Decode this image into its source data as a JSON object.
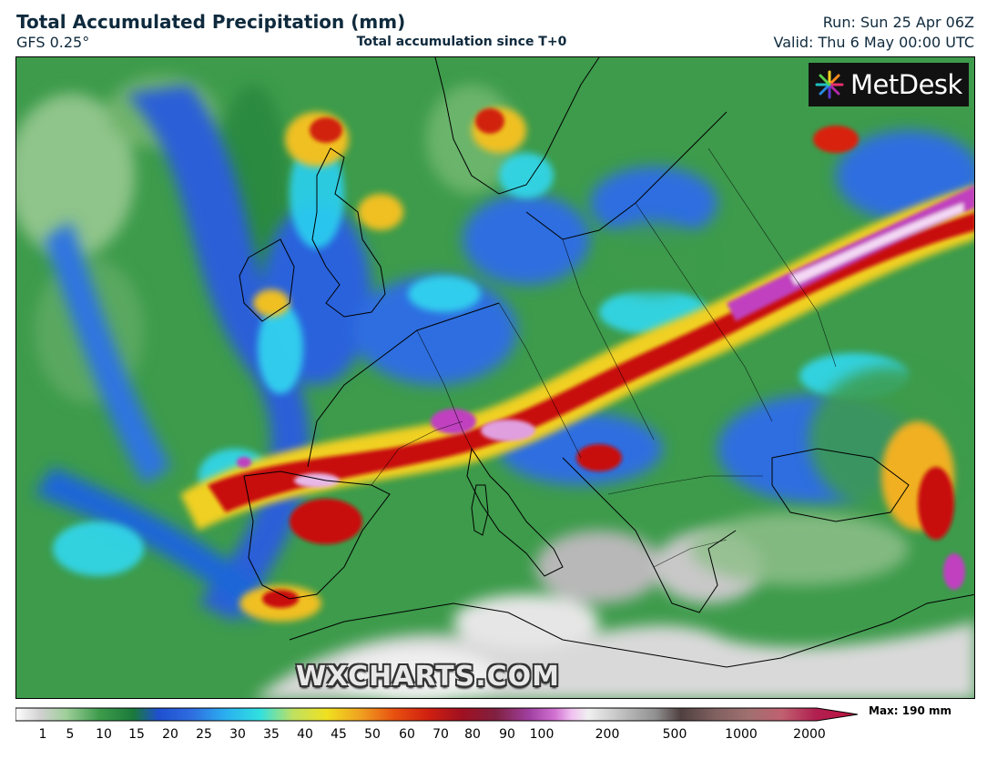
{
  "header": {
    "title": "Total Accumulated Precipitation (mm)",
    "model": "GFS 0.25°",
    "subtitle": "Total accumulation since T+0",
    "run": "Run: Sun 25 Apr 06Z",
    "valid": "Valid: Thu 6 May 00:00 UTC"
  },
  "logo": {
    "text": "MetDesk"
  },
  "watermark": "WXCHARTS.COM",
  "colorbar": {
    "labels": [
      "1",
      "5",
      "10",
      "15",
      "20",
      "25",
      "30",
      "35",
      "40",
      "45",
      "50",
      "60",
      "70",
      "80",
      "90",
      "100",
      "200",
      "500",
      "1000",
      "2000"
    ],
    "max_label": "Max: 190 mm"
  },
  "colors": {
    "title": "#0f2a3d",
    "sea_low": "#3a9a4a",
    "land_dry": "#dcdcdc",
    "heavy": "#c00000",
    "extreme": "#c040c0"
  }
}
